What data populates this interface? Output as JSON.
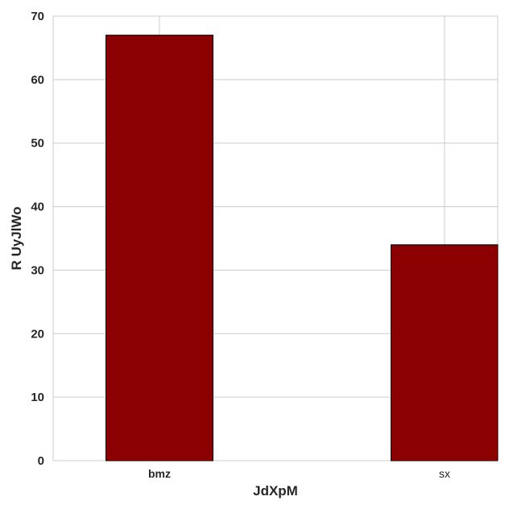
{
  "chart_data": {
    "type": "bar",
    "title": "",
    "xlabel": "JdXpM",
    "ylabel": "R UyJlWo",
    "categories": [
      "bmz",
      "sx"
    ],
    "values": [
      67,
      34
    ],
    "ylim": [
      0,
      70
    ],
    "yticks": [
      0,
      10,
      20,
      30,
      40,
      50,
      60,
      70
    ],
    "grid": true,
    "bar_color": "#8b0000",
    "bar_edge_color": "#000000",
    "grid_color": "#cccccc"
  }
}
